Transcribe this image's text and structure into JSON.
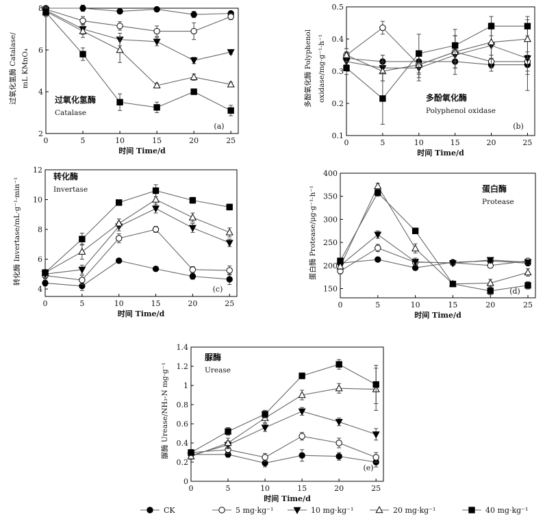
{
  "series_styles": [
    {
      "key": "CK",
      "marker": "circle",
      "fill": "#000000"
    },
    {
      "key": "5",
      "marker": "circle",
      "fill": "#ffffff"
    },
    {
      "key": "10",
      "marker": "triangle-down",
      "fill": "#000000"
    },
    {
      "key": "20",
      "marker": "triangle-up",
      "fill": "#ffffff"
    },
    {
      "key": "40",
      "marker": "square",
      "fill": "#000000"
    }
  ],
  "legend": [
    "CK",
    "5 mg·kg⁻¹",
    "10 mg·kg⁻¹",
    "20 mg·kg⁻¹",
    "40 mg·kg⁻¹"
  ],
  "chart_data": [
    {
      "type": "line",
      "panel": "(a)",
      "title_zh": "过氧化氢酶",
      "title_en": "Catalase",
      "xlabel": "时间 Time/d",
      "ylabel_1": "过氧化氢酶 Catalase/",
      "ylabel_2": "mL KMnO₄",
      "x": [
        0,
        5,
        10,
        15,
        20,
        25
      ],
      "xlim": [
        0,
        26
      ],
      "ylim": [
        2,
        8
      ],
      "xticks": [
        0,
        5,
        10,
        15,
        20,
        25
      ],
      "yticks": [
        2,
        4,
        6,
        8
      ],
      "series": [
        {
          "values": [
            8.0,
            8.0,
            7.85,
            7.95,
            7.7,
            7.75
          ],
          "err": [
            0.1,
            0.15,
            0.1,
            0.1,
            0.15,
            0.1
          ]
        },
        {
          "values": [
            7.95,
            7.4,
            7.15,
            6.9,
            6.9,
            7.6
          ],
          "err": [
            0.15,
            0.2,
            0.2,
            0.25,
            0.4,
            0.15
          ]
        },
        {
          "values": [
            7.9,
            7.0,
            6.5,
            6.4,
            5.5,
            5.9
          ],
          "err": [
            0.15,
            0.25,
            0.3,
            0.2,
            0.15,
            0.1
          ]
        },
        {
          "values": [
            7.85,
            6.9,
            6.0,
            4.3,
            4.7,
            4.35
          ],
          "err": [
            0.2,
            0.3,
            0.6,
            0.1,
            0.15,
            0.1
          ]
        },
        {
          "values": [
            7.8,
            5.8,
            3.5,
            3.25,
            4.0,
            3.1
          ],
          "err": [
            0.2,
            0.3,
            0.4,
            0.25,
            0.1,
            0.25
          ]
        }
      ]
    },
    {
      "type": "line",
      "panel": "(b)",
      "title_zh": "多酚氧化酶",
      "title_en": "Polyphenol oxidase",
      "xlabel": "时间 Time/d",
      "ylabel_1": "多酚氧化酶 Polyphenol",
      "ylabel_2": "oxidase/mg·g⁻¹·h⁻¹",
      "x": [
        0,
        5,
        10,
        15,
        20,
        25
      ],
      "xlim": [
        0,
        26
      ],
      "ylim": [
        0.1,
        0.5
      ],
      "xticks": [
        0,
        5,
        10,
        15,
        20,
        25
      ],
      "yticks": [
        0.1,
        0.2,
        0.3,
        0.4,
        0.5
      ],
      "series": [
        {
          "values": [
            0.34,
            0.33,
            0.33,
            0.33,
            0.32,
            0.32
          ],
          "err": [
            0.02,
            0.02,
            0.02,
            0.02,
            0.02,
            0.03
          ]
        },
        {
          "values": [
            0.35,
            0.435,
            0.32,
            0.36,
            0.33,
            0.33
          ],
          "err": [
            0.02,
            0.02,
            0.04,
            0.05,
            0.02,
            0.03
          ]
        },
        {
          "values": [
            0.33,
            0.31,
            0.31,
            0.35,
            0.38,
            0.34
          ],
          "err": [
            0.02,
            0.04,
            0.04,
            0.06,
            0.07,
            0.1
          ]
        },
        {
          "values": [
            0.35,
            0.3,
            0.32,
            0.36,
            0.39,
            0.4
          ],
          "err": [
            0.02,
            0.03,
            0.03,
            0.05,
            0.05,
            0.06
          ]
        },
        {
          "values": [
            0.31,
            0.215,
            0.355,
            0.38,
            0.44,
            0.44
          ],
          "err": [
            0.02,
            0.08,
            0.06,
            0.05,
            0.03,
            0.03
          ]
        }
      ]
    },
    {
      "type": "line",
      "panel": "(c)",
      "title_zh": "转化酶",
      "title_en": "Invertase",
      "xlabel": "时间 Time/d",
      "ylabel_1": "转化酶 Invertase/mL·g⁻¹·min⁻¹",
      "ylabel_2": "",
      "x": [
        0,
        5,
        10,
        15,
        20,
        25
      ],
      "xlim": [
        0,
        26
      ],
      "ylim": [
        3.5,
        12
      ],
      "xticks": [
        0,
        5,
        10,
        15,
        20,
        25
      ],
      "yticks": [
        4,
        6,
        8,
        10,
        12
      ],
      "series": [
        {
          "values": [
            4.4,
            4.2,
            5.9,
            5.35,
            4.85,
            4.65
          ],
          "err": [
            0.2,
            0.3,
            0.15,
            0.1,
            0.2,
            0.35
          ]
        },
        {
          "values": [
            4.9,
            4.6,
            7.4,
            8.0,
            5.3,
            5.25
          ],
          "err": [
            0.2,
            0.3,
            0.3,
            0.2,
            0.2,
            0.3
          ]
        },
        {
          "values": [
            5.0,
            5.3,
            8.2,
            9.4,
            8.1,
            7.1
          ],
          "err": [
            0.2,
            0.3,
            0.3,
            0.3,
            0.3,
            0.25
          ]
        },
        {
          "values": [
            5.1,
            6.5,
            8.4,
            10.0,
            8.8,
            7.8
          ],
          "err": [
            0.2,
            0.5,
            0.3,
            0.4,
            0.3,
            0.3
          ]
        },
        {
          "values": [
            5.1,
            7.35,
            9.8,
            10.6,
            9.95,
            9.5
          ],
          "err": [
            0.2,
            0.4,
            0.15,
            0.4,
            0.2,
            0.2
          ]
        }
      ]
    },
    {
      "type": "line",
      "panel": "(d)",
      "title_zh": "蛋白酶",
      "title_en": "Protease",
      "xlabel": "时间 Time/d",
      "ylabel_1": "蛋白酶 Protease/μg·g⁻¹·h⁻¹",
      "ylabel_2": "",
      "x": [
        0,
        5,
        10,
        15,
        20,
        25
      ],
      "xlim": [
        0,
        26
      ],
      "ylim": [
        130,
        400
      ],
      "xticks": [
        0,
        5,
        10,
        15,
        20,
        25
      ],
      "yticks": [
        150,
        200,
        250,
        300,
        350,
        400
      ],
      "series": [
        {
          "values": [
            205,
            213,
            195,
            207,
            210,
            205
          ],
          "err": [
            5,
            5,
            5,
            5,
            5,
            5
          ]
        },
        {
          "values": [
            188,
            238,
            207,
            206,
            200,
            210
          ],
          "err": [
            6,
            8,
            5,
            5,
            5,
            5
          ]
        },
        {
          "values": [
            200,
            267,
            208,
            205,
            212,
            207
          ],
          "err": [
            6,
            8,
            8,
            5,
            5,
            5
          ]
        },
        {
          "values": [
            198,
            372,
            237,
            160,
            162,
            185
          ],
          "err": [
            6,
            6,
            10,
            5,
            8,
            8
          ]
        },
        {
          "values": [
            210,
            358,
            275,
            160,
            145,
            157
          ],
          "err": [
            6,
            8,
            5,
            5,
            8,
            8
          ]
        }
      ]
    },
    {
      "type": "line",
      "panel": "(e)",
      "title_zh": "脲酶",
      "title_en": "Urease",
      "xlabel": "时间 Time/d",
      "ylabel_1": "脲酶 Urease/NH₃-N mg·g⁻¹",
      "ylabel_2": "",
      "x": [
        0,
        5,
        10,
        15,
        20,
        25
      ],
      "xlim": [
        0,
        26
      ],
      "ylim": [
        0,
        1.4
      ],
      "xticks": [
        0,
        5,
        10,
        15,
        20,
        25
      ],
      "yticks": [
        0,
        0.2,
        0.4,
        0.6,
        0.8,
        1.0,
        1.2,
        1.4
      ],
      "series": [
        {
          "values": [
            0.28,
            0.28,
            0.19,
            0.27,
            0.26,
            0.2
          ],
          "err": [
            0.03,
            0.03,
            0.04,
            0.06,
            0.04,
            0.05
          ]
        },
        {
          "values": [
            0.3,
            0.33,
            0.25,
            0.47,
            0.4,
            0.25
          ],
          "err": [
            0.03,
            0.04,
            0.04,
            0.04,
            0.05,
            0.05
          ]
        },
        {
          "values": [
            0.27,
            0.38,
            0.56,
            0.73,
            0.62,
            0.49
          ],
          "err": [
            0.03,
            0.04,
            0.04,
            0.04,
            0.04,
            0.06
          ]
        },
        {
          "values": [
            0.26,
            0.4,
            0.66,
            0.9,
            0.97,
            0.96
          ],
          "err": [
            0.03,
            0.05,
            0.05,
            0.05,
            0.05,
            0.22
          ]
        },
        {
          "values": [
            0.3,
            0.52,
            0.7,
            1.1,
            1.22,
            1.01
          ],
          "err": [
            0.03,
            0.04,
            0.04,
            0.03,
            0.05,
            0.2
          ]
        }
      ]
    }
  ]
}
